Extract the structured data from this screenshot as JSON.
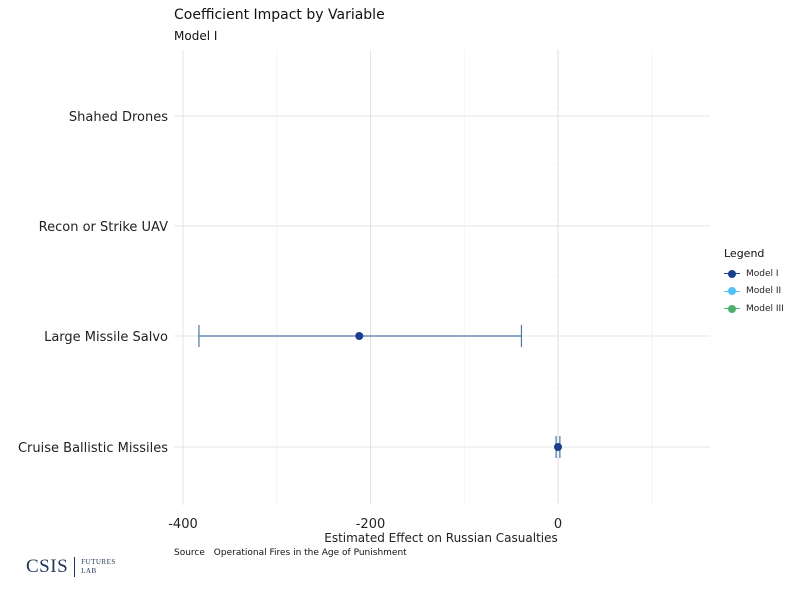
{
  "chart_data": {
    "type": "dot-errorbar",
    "title": "Coefficient Impact by Variable",
    "subtitle": "Model I",
    "xlabel": "Estimated Effect on Russian Casualties",
    "ylabel": "",
    "xlim": [
      -400,
      160
    ],
    "x_ticks": [
      -400,
      -200,
      0
    ],
    "x_tick_labels": [
      "-400",
      "-200",
      "0"
    ],
    "categories": [
      "Shahed Drones",
      "Recon or Strike UAV",
      "Large Missile Salvo",
      "Cruise Ballistic Missiles"
    ],
    "grid": true,
    "legend_position": "right",
    "series": [
      {
        "name": "Model I",
        "color": "#1a3f8c",
        "points": [
          {
            "category": "Large Missile Salvo",
            "estimate": -212,
            "low": -383,
            "high": -39
          },
          {
            "category": "Cruise Ballistic Missiles",
            "estimate": 0,
            "low": -2,
            "high": 2
          }
        ]
      },
      {
        "name": "Model II",
        "color": "#4fc3f7",
        "points": []
      },
      {
        "name": "Model III",
        "color": "#4caf6e",
        "points": []
      }
    ],
    "errorbar_color": "#4a78a8"
  },
  "legend": {
    "title": "Legend",
    "items": [
      {
        "label": "Model I",
        "color": "#1a3f8c"
      },
      {
        "label": "Model II",
        "color": "#4fc3f7"
      },
      {
        "label": "Model III",
        "color": "#4caf6e"
      }
    ]
  },
  "source": {
    "label": "Source",
    "text": "Operational Fires in the Age of Punishment"
  },
  "logo": {
    "main": "CSIS",
    "sub_line1": "FUTURES",
    "sub_line2": "LAB"
  }
}
